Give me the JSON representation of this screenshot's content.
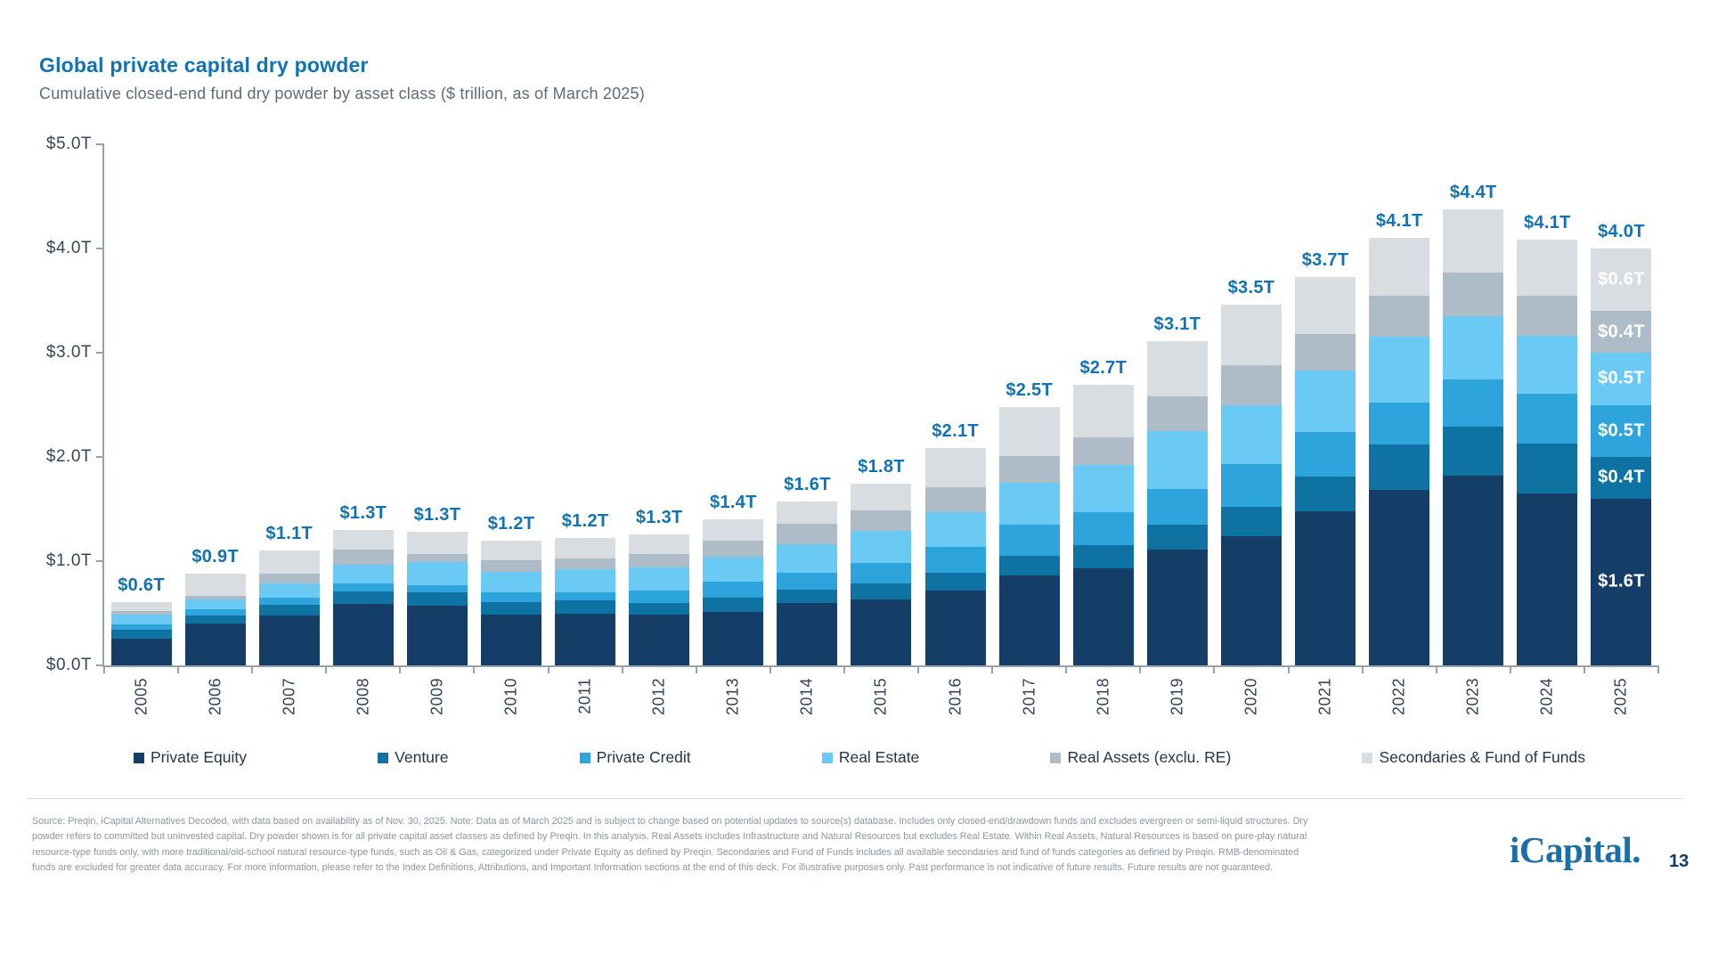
{
  "header": {
    "title": "Global private capital dry powder",
    "subtitle": "Cumulative closed-end fund dry powder by asset class ($ trillion, as of March 2025)"
  },
  "chart_data": {
    "type": "bar",
    "stacked": true,
    "title": "Global private capital dry powder",
    "subtitle": "Cumulative closed-end fund dry powder by asset class ($ trillion, as of March 2025)",
    "unit": "$ trillion",
    "ylim": [
      0,
      5.0
    ],
    "y_tick_labels": [
      "$5.0T",
      "$4.0T",
      "$3.0T",
      "$2.0T",
      "$1.0T",
      "$0.0T"
    ],
    "grid": false,
    "legend_position": "bottom",
    "categories": [
      "2005",
      "2006",
      "2007",
      "2008",
      "2009",
      "2010",
      "2011",
      "2012",
      "2013",
      "2014",
      "2015",
      "2016",
      "2017",
      "2018",
      "2019",
      "2020",
      "2021",
      "2022",
      "2023",
      "2024",
      "2025"
    ],
    "total_labels": [
      "$0.6T",
      "$0.9T",
      "$1.1T",
      "$1.3T",
      "$1.3T",
      "$1.2T",
      "$1.2T",
      "$1.3T",
      "$1.4T",
      "$1.6T",
      "$1.8T",
      "$2.1T",
      "$2.5T",
      "$2.7T",
      "$3.1T",
      "$3.5T",
      "$3.7T",
      "$4.1T",
      "$4.4T",
      "$4.1T",
      "$4.0T"
    ],
    "series": [
      {
        "name": "Private Equity",
        "color": "#143D68",
        "values": [
          0.26,
          0.4,
          0.48,
          0.59,
          0.57,
          0.49,
          0.5,
          0.49,
          0.51,
          0.6,
          0.63,
          0.72,
          0.86,
          0.93,
          1.11,
          1.24,
          1.48,
          1.68,
          1.82,
          1.65,
          1.6
        ]
      },
      {
        "name": "Venture",
        "color": "#0E72A3",
        "values": [
          0.08,
          0.08,
          0.1,
          0.12,
          0.13,
          0.12,
          0.12,
          0.11,
          0.14,
          0.13,
          0.16,
          0.17,
          0.19,
          0.22,
          0.24,
          0.28,
          0.33,
          0.44,
          0.47,
          0.48,
          0.4
        ]
      },
      {
        "name": "Private Credit",
        "color": "#2EA4DC",
        "values": [
          0.05,
          0.06,
          0.07,
          0.08,
          0.07,
          0.09,
          0.08,
          0.12,
          0.15,
          0.16,
          0.19,
          0.25,
          0.3,
          0.32,
          0.34,
          0.41,
          0.43,
          0.4,
          0.45,
          0.48,
          0.5
        ]
      },
      {
        "name": "Real Estate",
        "color": "#6BCAF3",
        "values": [
          0.1,
          0.09,
          0.14,
          0.18,
          0.22,
          0.2,
          0.22,
          0.22,
          0.24,
          0.27,
          0.31,
          0.33,
          0.4,
          0.45,
          0.56,
          0.57,
          0.59,
          0.63,
          0.61,
          0.55,
          0.5
        ]
      },
      {
        "name": "Real Assets (exclu. RE)",
        "color": "#AEBCC8",
        "values": [
          0.03,
          0.04,
          0.09,
          0.14,
          0.08,
          0.11,
          0.11,
          0.13,
          0.16,
          0.2,
          0.2,
          0.24,
          0.26,
          0.27,
          0.33,
          0.38,
          0.35,
          0.4,
          0.42,
          0.39,
          0.4
        ]
      },
      {
        "name": "Secondaries & Fund of Funds",
        "color": "#D8DDE2",
        "values": [
          0.09,
          0.21,
          0.22,
          0.19,
          0.21,
          0.19,
          0.19,
          0.19,
          0.2,
          0.21,
          0.25,
          0.38,
          0.47,
          0.5,
          0.53,
          0.58,
          0.55,
          0.55,
          0.61,
          0.54,
          0.6
        ]
      }
    ],
    "segment_labels_last_bar": {
      "category": "2025",
      "labels": [
        "$1.6T",
        "$0.4T",
        "$0.5T",
        "$0.5T",
        "$0.4T",
        "$0.6T"
      ]
    }
  },
  "legend": {
    "items": [
      {
        "label": "Private Equity",
        "color": "#143D68"
      },
      {
        "label": "Venture",
        "color": "#0E72A3"
      },
      {
        "label": "Private Credit",
        "color": "#2EA4DC"
      },
      {
        "label": "Real Estate",
        "color": "#6BCAF3"
      },
      {
        "label": "Real Assets (exclu. RE)",
        "color": "#AEBCC8"
      },
      {
        "label": "Secondaries & Fund of Funds",
        "color": "#D8DDE2"
      }
    ]
  },
  "footer": {
    "lines": [
      "Source: Preqin, iCapital Alternatives Decoded, with data based on availability as of Nov. 30, 2025. Note: Data as of March 2025 and is subject to change based on potential updates to source(s) database. Includes only closed-end/drawdown funds and excludes evergreen or semi-liquid structures. Dry",
      "powder refers to committed but uninvested capital. Dry powder shown is for all private capital asset classes as defined by Preqin. In this analysis, Real Assets includes Infrastructure and Natural Resources but excludes Real Estate. Within Real Assets, Natural Resources is based on pure-play natural",
      "resource-type funds only, with more traditional/old-school natural resource-type funds, such as Oil & Gas, categorized under Private Equity as defined by Preqin. Secondaries and Fund of Funds includes all available secondaries and fund of funds categories as defined by Preqin. RMB-denominated",
      "funds are excluded for greater data accuracy. For more information, please refer to the Index Definitions, Attributions, and Important Information sections at the end of this deck. For illustrative purposes only. Past performance is not indicative of future results. Future results are not guaranteed."
    ]
  },
  "branding": {
    "logo_text": "iCapital",
    "logo_dot": ".",
    "page_number": "13",
    "accent_color": "#1173B4"
  }
}
